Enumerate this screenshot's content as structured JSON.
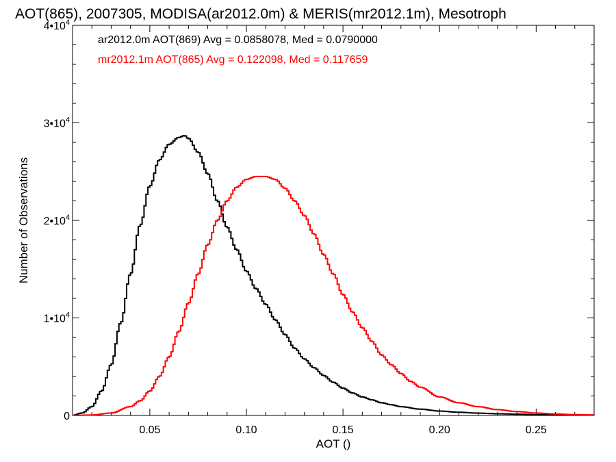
{
  "chart_data": {
    "type": "line",
    "title": "AOT(865), 2007305, MODISA(ar2012.0m) & MERIS(mr2012.1m), Mesotroph",
    "xlabel": "AOT ()",
    "ylabel": "Number of Observations",
    "xlim": [
      0.01,
      0.28
    ],
    "ylim": [
      0,
      40000
    ],
    "x_ticks": [
      {
        "value": 0.05,
        "label": "0.05"
      },
      {
        "value": 0.1,
        "label": "0.10"
      },
      {
        "value": 0.15,
        "label": "0.15"
      },
      {
        "value": 0.2,
        "label": "0.20"
      },
      {
        "value": 0.25,
        "label": "0.25"
      }
    ],
    "y_ticks": [
      {
        "value": 0,
        "label": "0"
      },
      {
        "value": 10000,
        "label": "1•10",
        "exp": "4"
      },
      {
        "value": 20000,
        "label": "2•10",
        "exp": "4"
      },
      {
        "value": 30000,
        "label": "3•10",
        "exp": "4"
      },
      {
        "value": 40000,
        "label": "4•10",
        "exp": "4"
      }
    ],
    "grid": false,
    "legend_placement": "top-left",
    "series": [
      {
        "name": "ar2012.0m AOT(869) Avg = 0.0858078, Med = 0.0790000",
        "color": "#000000",
        "style": "step",
        "x": [
          0.01,
          0.015,
          0.02,
          0.025,
          0.03,
          0.035,
          0.04,
          0.045,
          0.05,
          0.055,
          0.06,
          0.065,
          0.068,
          0.07,
          0.075,
          0.08,
          0.085,
          0.09,
          0.095,
          0.1,
          0.105,
          0.11,
          0.115,
          0.12,
          0.125,
          0.13,
          0.135,
          0.14,
          0.145,
          0.15,
          0.155,
          0.16,
          0.165,
          0.17,
          0.175,
          0.18,
          0.19,
          0.2,
          0.21,
          0.22,
          0.23,
          0.24,
          0.25,
          0.26,
          0.27,
          0.28
        ],
        "y": [
          0,
          250,
          900,
          2500,
          5200,
          9500,
          14500,
          19500,
          23500,
          26200,
          27800,
          28500,
          28700,
          28400,
          27000,
          24800,
          22000,
          19300,
          17000,
          14800,
          13000,
          11400,
          9800,
          8300,
          6900,
          5800,
          4900,
          4100,
          3400,
          2800,
          2300,
          1900,
          1600,
          1300,
          1100,
          900,
          650,
          450,
          330,
          240,
          170,
          130,
          90,
          70,
          50,
          40
        ]
      },
      {
        "name": "mr2012.1m AOT(865) Avg = 0.122098, Med = 0.117659",
        "color": "#ff0000",
        "style": "step",
        "x": [
          0.01,
          0.02,
          0.03,
          0.04,
          0.045,
          0.05,
          0.055,
          0.06,
          0.065,
          0.07,
          0.075,
          0.08,
          0.085,
          0.09,
          0.095,
          0.1,
          0.105,
          0.11,
          0.115,
          0.12,
          0.125,
          0.13,
          0.135,
          0.14,
          0.145,
          0.15,
          0.155,
          0.16,
          0.165,
          0.17,
          0.175,
          0.18,
          0.185,
          0.19,
          0.2,
          0.21,
          0.22,
          0.23,
          0.24,
          0.25,
          0.26,
          0.27,
          0.28
        ],
        "y": [
          0,
          50,
          250,
          900,
          1500,
          2500,
          4000,
          6000,
          8600,
          11500,
          14500,
          17500,
          20000,
          22000,
          23400,
          24200,
          24500,
          24500,
          24200,
          23300,
          22000,
          20500,
          18600,
          16500,
          14500,
          12400,
          10600,
          9000,
          7600,
          6200,
          5200,
          4300,
          3500,
          2900,
          1900,
          1300,
          900,
          600,
          400,
          250,
          150,
          90,
          60
        ]
      }
    ]
  }
}
